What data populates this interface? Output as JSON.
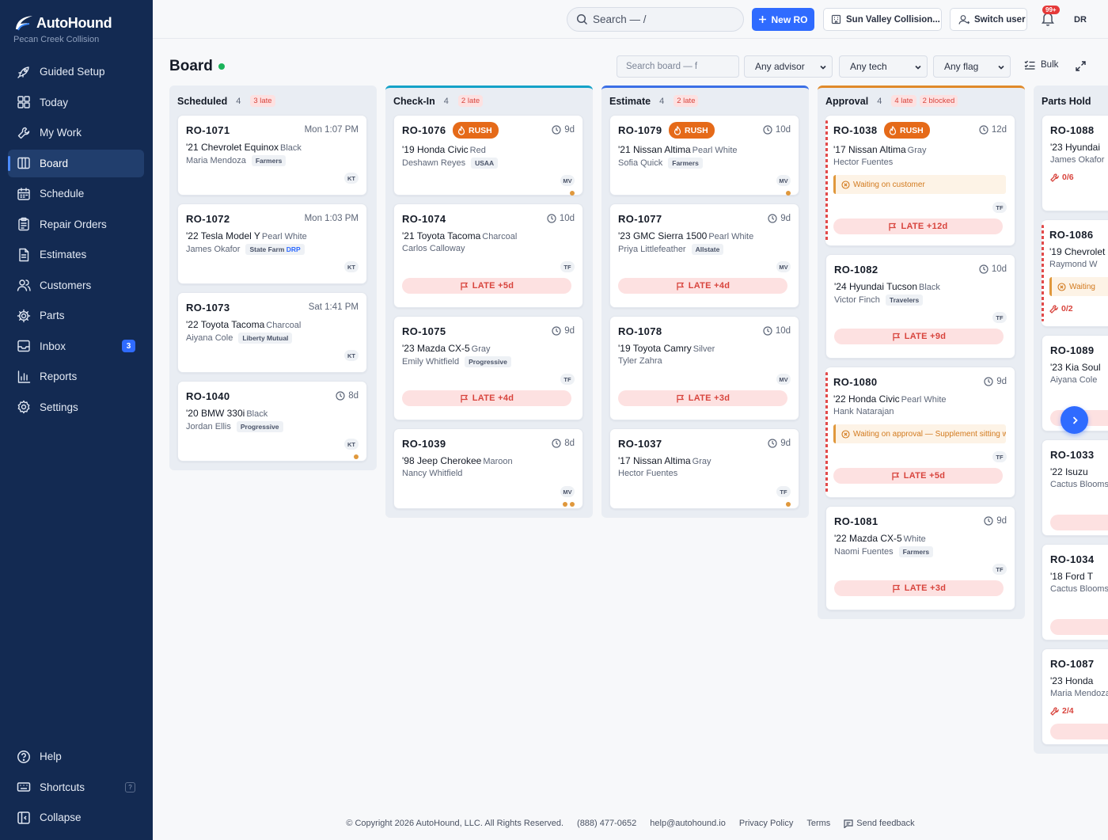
{
  "brand": {
    "name": "AutoHound",
    "shop": "Pecan Creek Collision"
  },
  "nav": [
    {
      "label": "Guided Setup",
      "icon": "rocket-icon"
    },
    {
      "label": "Today",
      "icon": "grid-icon"
    },
    {
      "label": "My Work",
      "icon": "wrench-icon"
    },
    {
      "label": "Board",
      "icon": "board-icon",
      "active": true
    },
    {
      "label": "Schedule",
      "icon": "calendar-icon"
    },
    {
      "label": "Repair Orders",
      "icon": "clipboard-icon"
    },
    {
      "label": "Estimates",
      "icon": "document-icon"
    },
    {
      "label": "Customers",
      "icon": "users-icon"
    },
    {
      "label": "Parts",
      "icon": "gear-part-icon"
    },
    {
      "label": "Inbox",
      "icon": "inbox-icon",
      "badge": "3"
    },
    {
      "label": "Reports",
      "icon": "chart-icon"
    },
    {
      "label": "Settings",
      "icon": "settings-icon"
    }
  ],
  "nav_bottom": {
    "help": "Help",
    "shortcuts": "Shortcuts",
    "shortcuts_key": "?",
    "collapse": "Collapse"
  },
  "header": {
    "search_placeholder": "Search — /",
    "new_ro": "New RO",
    "location": "Sun Valley Collision...",
    "switch_user": "Switch user",
    "notif_count": "99+",
    "avatar": "DR"
  },
  "board": {
    "title": "Board",
    "search_placeholder": "Search board — f",
    "filter_advisor": "Any advisor",
    "filter_tech": "Any tech",
    "filter_flag": "Any flag",
    "bulk": "Bulk"
  },
  "columns": [
    {
      "name": "Scheduled",
      "count": "4",
      "late": "3 late",
      "accent": "",
      "cards": [
        {
          "ro": "RO-1071",
          "meta": "Mon 1:07 PM",
          "vehicle": "'21 Chevrolet Equinox",
          "color": "Black",
          "customer": "Maria Mendoza",
          "insurer": "Farmers",
          "tech": "KT"
        },
        {
          "ro": "RO-1072",
          "meta": "Mon 1:03 PM",
          "vehicle": "'22 Tesla Model Y",
          "color": "Pearl White",
          "customer": "James Okafor",
          "insurer": "State Farm",
          "insurer_tag": "DRP",
          "tech": "KT"
        },
        {
          "ro": "RO-1073",
          "meta": "Sat 1:41 PM",
          "vehicle": "'22 Toyota Tacoma",
          "color": "Charcoal",
          "customer": "Aiyana Cole",
          "insurer": "Liberty Mutual",
          "tech": "KT"
        },
        {
          "ro": "RO-1040",
          "meta": "8d",
          "clock": true,
          "vehicle": "'20 BMW 330i",
          "color": "Black",
          "customer": "Jordan Ellis",
          "insurer": "Progressive",
          "tech": "KT",
          "dots": 1
        }
      ]
    },
    {
      "name": "Check-In",
      "count": "4",
      "late": "2 late",
      "accent": "#14a2c8",
      "cards": [
        {
          "ro": "RO-1076",
          "rush": "RUSH",
          "meta": "9d",
          "clock": true,
          "vehicle": "'19 Honda Civic",
          "color": "Red",
          "customer": "Deshawn Reyes",
          "insurer": "USAA",
          "tech": "MV",
          "dots": 1
        },
        {
          "ro": "RO-1074",
          "meta": "10d",
          "clock": true,
          "vehicle": "'21 Toyota Tacoma",
          "color": "Charcoal",
          "customer": "Carlos Calloway",
          "tech": "TF",
          "late": "LATE +5d"
        },
        {
          "ro": "RO-1075",
          "meta": "9d",
          "clock": true,
          "vehicle": "'23 Mazda CX-5",
          "color": "Gray",
          "customer": "Emily Whitfield",
          "insurer": "Progressive",
          "tech": "TF",
          "late": "LATE +4d"
        },
        {
          "ro": "RO-1039",
          "meta": "8d",
          "clock": true,
          "vehicle": "'98 Jeep Cherokee",
          "color": "Maroon",
          "customer": "Nancy Whitfield",
          "tech": "MV",
          "dots": 2
        }
      ]
    },
    {
      "name": "Estimate",
      "count": "4",
      "late": "2 late",
      "accent": "#3b6fe6",
      "cards": [
        {
          "ro": "RO-1079",
          "rush": "RUSH",
          "meta": "10d",
          "clock": true,
          "vehicle": "'21 Nissan Altima",
          "color": "Pearl White",
          "customer": "Sofia Quick",
          "insurer": "Farmers",
          "tech": "MV",
          "dots": 1
        },
        {
          "ro": "RO-1077",
          "meta": "9d",
          "clock": true,
          "vehicle": "'23 GMC Sierra 1500",
          "color": "Pearl White",
          "customer": "Priya Littlefeather",
          "insurer": "Allstate",
          "tech": "MV",
          "late": "LATE +4d"
        },
        {
          "ro": "RO-1078",
          "meta": "10d",
          "clock": true,
          "vehicle": "'19 Toyota Camry",
          "color": "Silver",
          "customer": "Tyler Zahra",
          "tech": "MV",
          "late": "LATE +3d"
        },
        {
          "ro": "RO-1037",
          "meta": "9d",
          "clock": true,
          "vehicle": "'17 Nissan Altima",
          "color": "Gray",
          "customer": "Hector Fuentes",
          "tech": "TF",
          "dots": 1
        }
      ]
    },
    {
      "name": "Approval",
      "count": "4",
      "late": "4 late",
      "blocked": "2 blocked",
      "accent": "#e08a2a",
      "cards": [
        {
          "ro": "RO-1038",
          "rush": "RUSH",
          "meta": "12d",
          "clock": true,
          "stripe": true,
          "vehicle": "'17 Nissan Altima",
          "color": "Gray",
          "customer": "Hector Fuentes",
          "wait": "Waiting on customer",
          "tech": "TF",
          "late": "LATE +12d"
        },
        {
          "ro": "RO-1082",
          "meta": "10d",
          "clock": true,
          "vehicle": "'24 Hyundai Tucson",
          "color": "Black",
          "customer": "Victor Finch",
          "insurer": "Travelers",
          "tech": "TF",
          "late": "LATE +9d"
        },
        {
          "ro": "RO-1080",
          "meta": "9d",
          "clock": true,
          "stripe": true,
          "vehicle": "'22 Honda Civic",
          "color": "Pearl White",
          "customer": "Hank Natarajan",
          "wait": "Waiting on approval — Supplement sitting with",
          "tech": "TF",
          "late": "LATE +5d"
        },
        {
          "ro": "RO-1081",
          "meta": "9d",
          "clock": true,
          "vehicle": "'22 Mazda CX-5",
          "color": "White",
          "customer": "Naomi Fuentes",
          "insurer": "Farmers",
          "tech": "TF",
          "late": "LATE +3d"
        }
      ]
    },
    {
      "name": "Parts Hold",
      "accent": "",
      "cards": [
        {
          "ro": "RO-1088",
          "vehicle": "'23 Hyundai",
          "customer": "James Okafor",
          "parts": "0/6"
        },
        {
          "ro": "RO-1086",
          "stripe": true,
          "vehicle": "'19 Chevrolet",
          "customer": "Raymond W",
          "wait": "Waiting",
          "parts": "0/2"
        },
        {
          "ro": "RO-1089",
          "vehicle": "'23 Kia Soul",
          "customer": "Aiyana Cole",
          "parts": ""
        },
        {
          "ro": "RO-1033",
          "vehicle": "'22 Isuzu",
          "customer": "Cactus Blooms"
        },
        {
          "ro": "RO-1034",
          "vehicle": "'18 Ford T",
          "customer": "Cactus Blooms"
        },
        {
          "ro": "RO-1087",
          "vehicle": "'23 Honda",
          "customer": "Maria Mendoza",
          "parts": "2/4"
        }
      ]
    }
  ],
  "footer": {
    "copyright": "© Copyright 2026 AutoHound, LLC. All Rights Reserved.",
    "phone": "(888) 477-0652",
    "email": "help@autohound.io",
    "privacy": "Privacy Policy",
    "terms": "Terms",
    "feedback": "Send feedback"
  },
  "colors": {
    "sidebar": "#132a52",
    "primary": "#2f6bff",
    "rush": "#e56a19",
    "late": "#d8443d"
  }
}
